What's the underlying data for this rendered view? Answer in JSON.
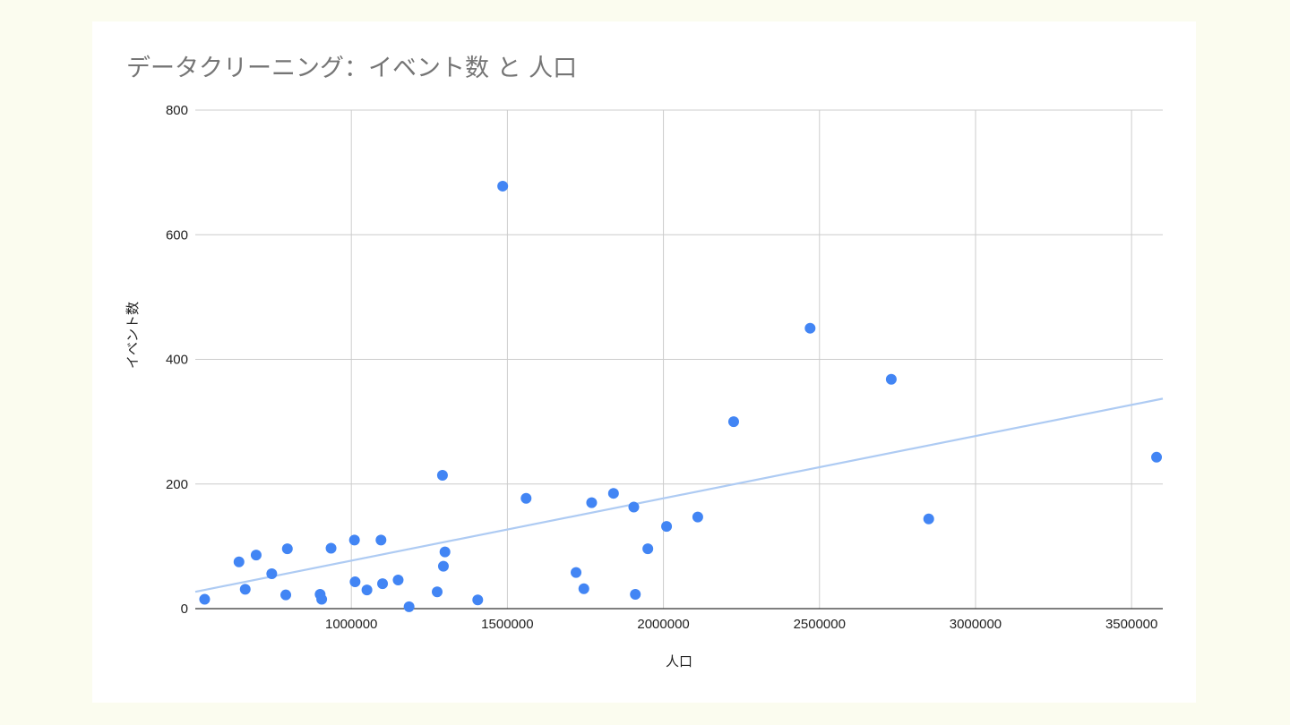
{
  "chart_data": {
    "type": "scatter",
    "title": "データクリーニング：イベント数 と 人口",
    "xlabel": "人口",
    "ylabel": "イベント数",
    "xlim": [
      500000,
      3600000
    ],
    "ylim": [
      0,
      800
    ],
    "x_ticks": [
      1000000,
      1500000,
      2000000,
      2500000,
      3000000,
      3500000
    ],
    "x_tick_labels": [
      "1000000",
      "1500000",
      "2000000",
      "2500000",
      "3000000",
      "3500000"
    ],
    "y_ticks": [
      0,
      200,
      400,
      600,
      800
    ],
    "y_tick_labels": [
      "0",
      "200",
      "400",
      "600",
      "800"
    ],
    "grid": true,
    "colors": {
      "points": "#4285f4",
      "trendline": "#aecbf3",
      "grid": "#cccccc",
      "axis": "#333333"
    },
    "series": [
      {
        "values": [
          [
            530000,
            15
          ],
          [
            640000,
            75
          ],
          [
            660000,
            31
          ],
          [
            695000,
            86
          ],
          [
            745000,
            56
          ],
          [
            790000,
            22
          ],
          [
            795000,
            96
          ],
          [
            900000,
            23
          ],
          [
            905000,
            15
          ],
          [
            935000,
            97
          ],
          [
            1010000,
            110
          ],
          [
            1012000,
            43
          ],
          [
            1050000,
            30
          ],
          [
            1095000,
            110
          ],
          [
            1100000,
            40
          ],
          [
            1150000,
            46
          ],
          [
            1185000,
            3
          ],
          [
            1275000,
            27
          ],
          [
            1292000,
            214
          ],
          [
            1295000,
            68
          ],
          [
            1300000,
            91
          ],
          [
            1405000,
            14
          ],
          [
            1485000,
            678
          ],
          [
            1560000,
            177
          ],
          [
            1720000,
            58
          ],
          [
            1745000,
            32
          ],
          [
            1770000,
            170
          ],
          [
            1840000,
            185
          ],
          [
            1905000,
            163
          ],
          [
            1910000,
            23
          ],
          [
            1950000,
            96
          ],
          [
            2010000,
            132
          ],
          [
            2110000,
            147
          ],
          [
            2225000,
            300
          ],
          [
            2470000,
            450
          ],
          [
            2730000,
            368
          ],
          [
            2850000,
            144
          ],
          [
            3580000,
            243
          ]
        ]
      }
    ],
    "trendline": {
      "type": "linear",
      "points": [
        [
          500000,
          27
        ],
        [
          3600000,
          337
        ]
      ]
    }
  }
}
